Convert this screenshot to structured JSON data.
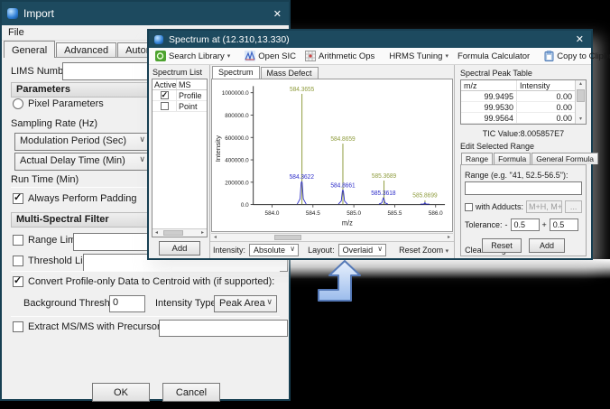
{
  "import_window": {
    "title": "Import",
    "close_glyph": "✕",
    "menu_file": "File",
    "tabs": [
      "General",
      "Advanced",
      "Automated Actions"
    ],
    "lims_label": "LIMS Number:",
    "lims_value": "",
    "parameters_header": "Parameters",
    "pixel_parameters_label": "Pixel Parameters",
    "pixel_parameters_checked": false,
    "sampling_rate_label": "Sampling Rate (Hz)",
    "modulation_period_value": "Modulation Period (Sec)",
    "actual_delay_value": "Actual Delay Time (Min)",
    "run_time_label": "Run Time (Min)",
    "always_padding_label": "Always Perform Padding",
    "always_padding_checked": true,
    "filter_header": "Multi-Spectral Filter",
    "range_limit_label": "Range Limit",
    "range_limit_checked": false,
    "range_limit_value": "",
    "threshold_limit_label": "Threshold Limit",
    "threshold_limit_checked": false,
    "threshold_limit_value": "",
    "convert_label": "Convert Profile-only Data to Centroid with (if supported):",
    "convert_checked": true,
    "background_threshold_label": "Background Threshold:",
    "background_threshold_value": "0",
    "intensity_type_label": "Intensity Type:",
    "intensity_type_value": "Peak Area",
    "extract_label": "Extract MS/MS with Precursor Ions:",
    "extract_checked": false,
    "extract_value": "",
    "ok_label": "OK",
    "cancel_label": "Cancel"
  },
  "spectrum_window": {
    "title": "Spectrum at (12.310,13.330)",
    "close_glyph": "✕",
    "toolbar": {
      "search_library": "Search Library",
      "open_sic": "Open SIC",
      "arithmetic_ops": "Arithmetic Ops",
      "hrms_tuning": "HRMS Tuning",
      "formula_calculator": "Formula Calculator",
      "copy_to_clipboard": "Copy to Clipboard"
    },
    "spectrum_list": {
      "header": "Spectrum List",
      "col_active": "Active",
      "col_ms": "MS",
      "rows": [
        {
          "ms": "Profile",
          "checked": true
        },
        {
          "ms": "Point",
          "checked": false
        }
      ],
      "add_label": "Add"
    },
    "tab_spectrum": "Spectrum",
    "tab_mass_defect": "Mass Defect",
    "bottom_bar": {
      "intensity_label": "Intensity:",
      "intensity_value": "Absolute",
      "layout_label": "Layout:",
      "layout_value": "Overlaid",
      "reset_zoom_label": "Reset Zoom",
      "clear_ranges_label": "Clear Ranges"
    },
    "peak_table": {
      "header": "Spectral Peak Table",
      "col_mz": "m/z",
      "col_intensity": "Intensity",
      "rows": [
        {
          "mz": "99.9495",
          "intensity": "0.00"
        },
        {
          "mz": "99.9530",
          "intensity": "0.00"
        },
        {
          "mz": "99.9564",
          "intensity": "0.00"
        }
      ],
      "tic_value": "TIC Value:8.005857E7"
    },
    "edit_range": {
      "header": "Edit Selected Range",
      "tabs": [
        "Range",
        "Formula",
        "General Formula"
      ],
      "range_label": "Range (e.g. \"41, 52.5-56.5\"):",
      "range_value": "",
      "adducts_label": "with Adducts:",
      "adducts_checked": false,
      "adducts_value": "M+H, M+N",
      "adducts_more_label": "...",
      "tolerance_label": "Tolerance:",
      "tolerance_minus_sign": "-",
      "tolerance_minus_value": "0.5",
      "tolerance_plus_sign": "+",
      "tolerance_plus_value": "0.5",
      "reset_label": "Reset",
      "add_label": "Add"
    }
  },
  "chart_data": {
    "type": "line",
    "subtype": "mass-spectrum (centroid sticks + profile traces, overlaid)",
    "title": "",
    "xlabel": "m/z",
    "ylabel": "Intensity",
    "xlim": [
      583.77,
      586.07
    ],
    "ylim": [
      0,
      1000000
    ],
    "xticks": [
      584.0,
      584.5,
      585.0,
      585.5,
      586.0
    ],
    "xtick_labels": [
      "584.0",
      "584.5",
      "585.0",
      "585.5",
      "586.0"
    ],
    "yticks": [
      0,
      200000,
      400000,
      600000,
      800000,
      1000000
    ],
    "ytick_labels": [
      "0.0",
      "200000.0",
      "400000.0",
      "600000.0",
      "800000.0",
      "1000000.0"
    ],
    "grid": false,
    "legend": "none",
    "series": [
      {
        "name": "centroid sticks",
        "style": "stick",
        "color": "#8f9c3e",
        "points": [
          {
            "x": 584.3655,
            "y": 990000,
            "label": "584.3655"
          },
          {
            "x": 584.8659,
            "y": 545000,
            "label": "584.8659"
          },
          {
            "x": 585.3689,
            "y": 215000,
            "label": "585.3689"
          },
          {
            "x": 585.8699,
            "y": 38000,
            "label": "585.8699"
          }
        ]
      },
      {
        "name": "profile trace",
        "style": "profile",
        "color": "#2d2dc9",
        "points": [
          {
            "x": 584.3622,
            "y": 205000,
            "label": "584.3622"
          },
          {
            "x": 584.8661,
            "y": 130000,
            "label": "584.8661"
          },
          {
            "x": 585.3618,
            "y": 60000,
            "label": "585.3618"
          },
          {
            "x": 585.869,
            "y": 18000,
            "label": ""
          }
        ]
      }
    ]
  }
}
